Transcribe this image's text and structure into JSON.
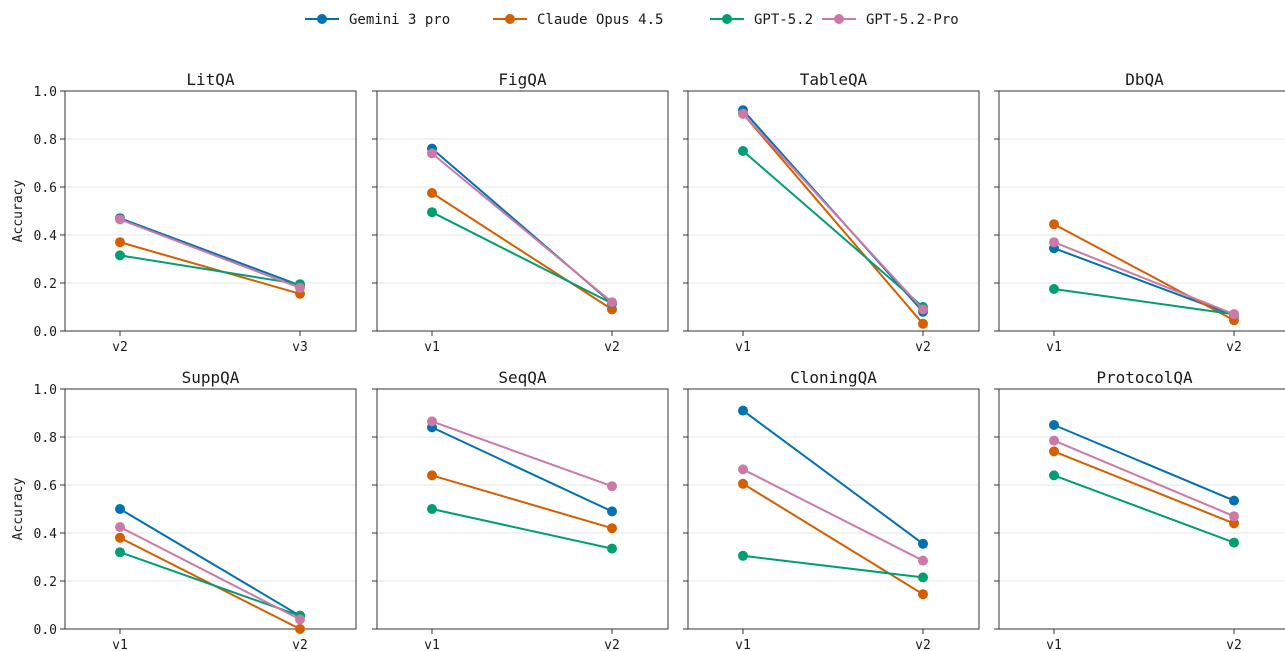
{
  "chart_data": {
    "type": "line",
    "ylabel": "Accuracy",
    "ylim": [
      0,
      1
    ],
    "yticks": [
      "0.0",
      "0.2",
      "0.4",
      "0.6",
      "0.8",
      "1.0"
    ],
    "legend": "top-center",
    "grid": "horizontal",
    "series_meta": [
      {
        "name": "Gemini 3 pro",
        "color": "#0072B2"
      },
      {
        "name": "Claude Opus 4.5",
        "color": "#D55E00"
      },
      {
        "name": "GPT-5.2",
        "color": "#009E73"
      },
      {
        "name": "GPT-5.2-Pro",
        "color": "#CC79A7"
      }
    ],
    "panels": [
      {
        "title": "LitQA",
        "categories": [
          "v2",
          "v3"
        ],
        "series": [
          [
            0.47,
            0.19
          ],
          [
            0.37,
            0.155
          ],
          [
            0.315,
            0.195
          ],
          [
            0.465,
            0.18
          ]
        ]
      },
      {
        "title": "FigQA",
        "categories": [
          "v1",
          "v2"
        ],
        "series": [
          [
            0.76,
            0.115
          ],
          [
            0.575,
            0.09
          ],
          [
            0.495,
            0.115
          ],
          [
            0.74,
            0.12
          ]
        ]
      },
      {
        "title": "TableQA",
        "categories": [
          "v1",
          "v2"
        ],
        "series": [
          [
            0.92,
            0.08
          ],
          [
            0.905,
            0.03
          ],
          [
            0.75,
            0.1
          ],
          [
            0.905,
            0.09
          ]
        ]
      },
      {
        "title": "DbQA",
        "categories": [
          "v1",
          "v2"
        ],
        "series": [
          [
            0.345,
            0.065
          ],
          [
            0.445,
            0.045
          ],
          [
            0.175,
            0.07
          ],
          [
            0.37,
            0.07
          ]
        ]
      },
      {
        "title": "SuppQA",
        "categories": [
          "v1",
          "v2"
        ],
        "series": [
          [
            0.5,
            0.055
          ],
          [
            0.38,
            0.0
          ],
          [
            0.32,
            0.055
          ],
          [
            0.425,
            0.04
          ]
        ]
      },
      {
        "title": "SeqQA",
        "categories": [
          "v1",
          "v2"
        ],
        "series": [
          [
            0.84,
            0.49
          ],
          [
            0.64,
            0.42
          ],
          [
            0.5,
            0.335
          ],
          [
            0.865,
            0.595
          ]
        ]
      },
      {
        "title": "CloningQA",
        "categories": [
          "v1",
          "v2"
        ],
        "series": [
          [
            0.91,
            0.355
          ],
          [
            0.605,
            0.145
          ],
          [
            0.305,
            0.215
          ],
          [
            0.665,
            0.285
          ]
        ]
      },
      {
        "title": "ProtocolQA",
        "categories": [
          "v1",
          "v2"
        ],
        "series": [
          [
            0.85,
            0.535
          ],
          [
            0.74,
            0.44
          ],
          [
            0.64,
            0.36
          ],
          [
            0.785,
            0.47
          ]
        ]
      }
    ]
  }
}
